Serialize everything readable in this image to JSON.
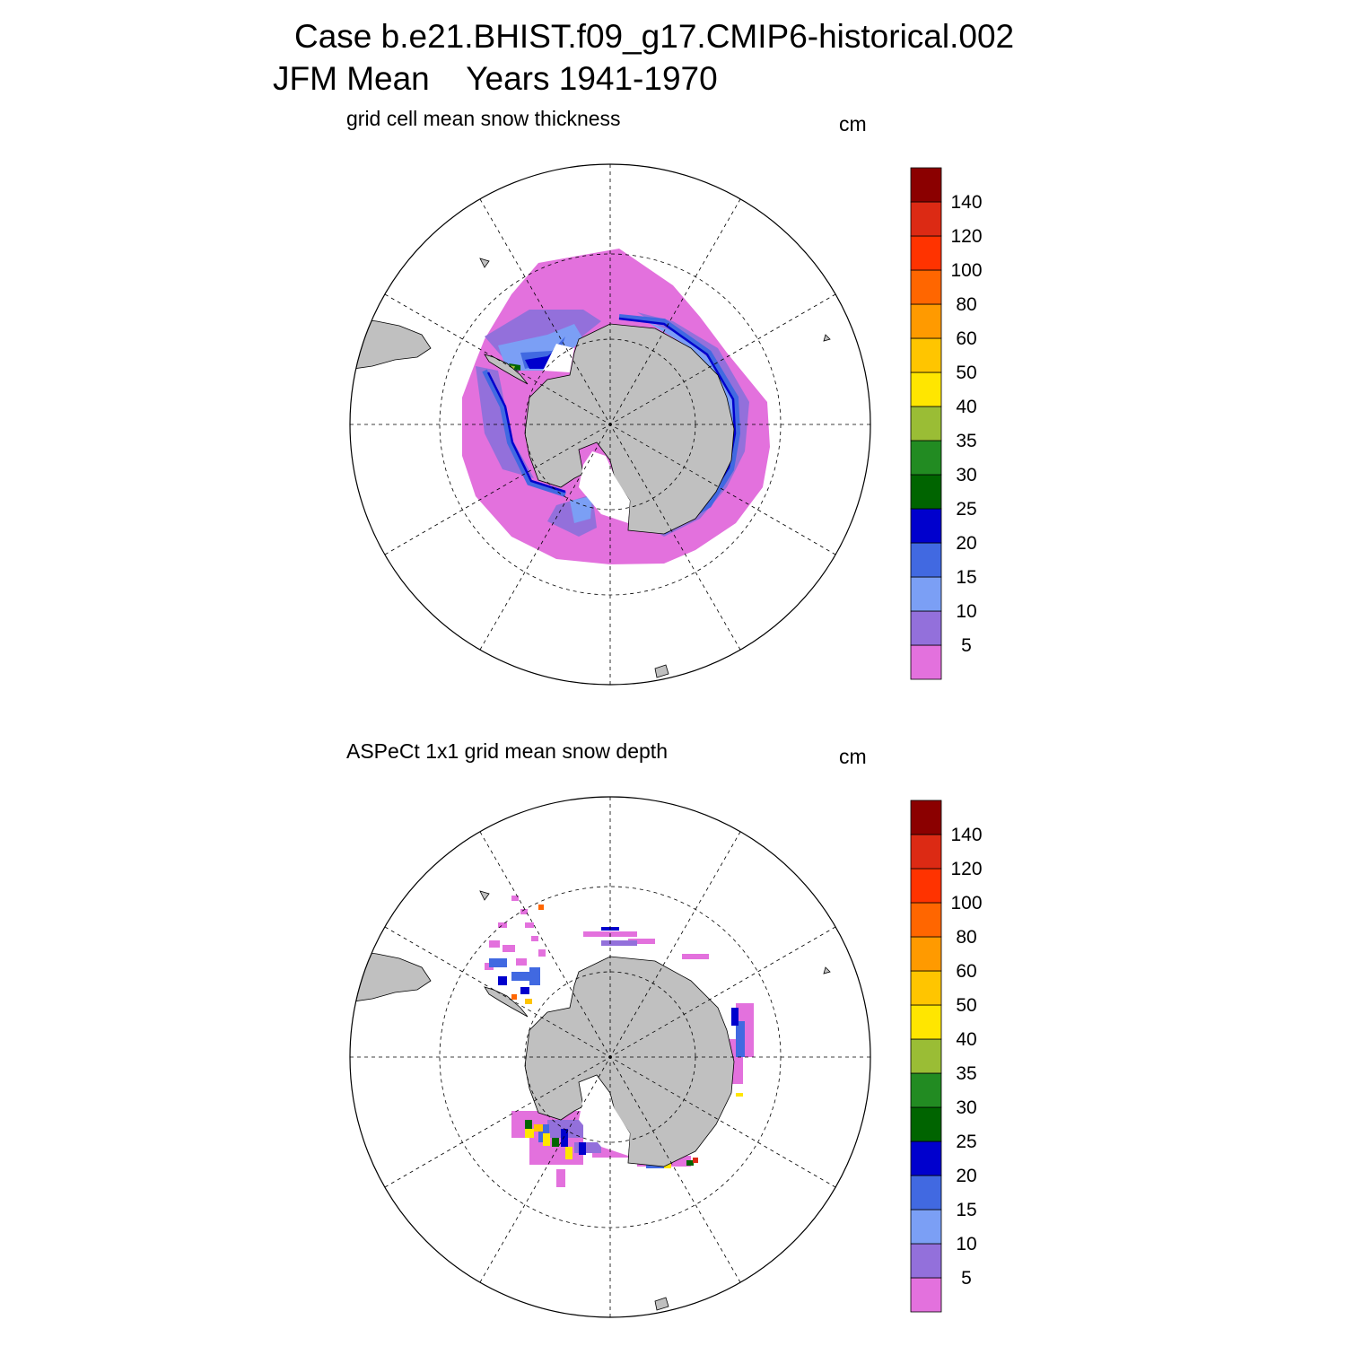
{
  "title": {
    "line1": "Case b.e21.BHIST.f09_g17.CMIP6-historical.002",
    "line2": "JFM Mean    Years 1941-1970"
  },
  "panels": [
    {
      "title": "grid cell mean snow thickness",
      "units": "cm",
      "field": "model"
    },
    {
      "title": "ASPeCt 1x1 grid mean snow depth",
      "units": "cm",
      "field": "obs"
    }
  ],
  "colorbar": {
    "levels": [
      "5",
      "10",
      "15",
      "20",
      "25",
      "30",
      "35",
      "40",
      "50",
      "60",
      "80",
      "100",
      "120",
      "140"
    ],
    "colors": [
      "#e371dd",
      "#9370db",
      "#7b9ff5",
      "#4169e1",
      "#0000cd",
      "#006400",
      "#228b22",
      "#9abd35",
      "#ffe600",
      "#ffc500",
      "#ff9a00",
      "#ff6600",
      "#ff3300",
      "#dc2a14",
      "#8b0000"
    ]
  },
  "land_color": "#c0c0c0",
  "icons": [
    "south-polar-stereographic-map",
    "antarctica-landmass",
    "colorbar"
  ]
}
